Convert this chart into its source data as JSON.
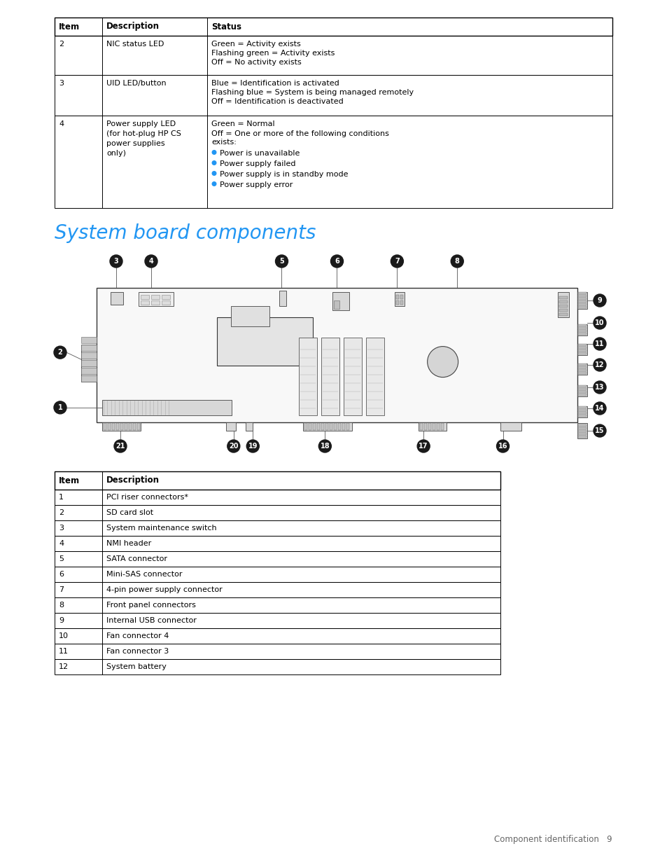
{
  "bg_color": "#ffffff",
  "title": "System board components",
  "title_color": "#2196f3",
  "title_fontsize": 20,
  "footer_text": "Component identification   9",
  "footer_fontsize": 8.5,
  "table1_rows": [
    {
      "item": "2",
      "desc": "NIC status LED",
      "status_plain": "Green = Activity exists\nFlashing green = Activity exists\nOff = No activity exists"
    },
    {
      "item": "3",
      "desc": "UID LED/button",
      "status_plain": "Blue = Identification is activated\nFlashing blue = System is being managed remotely\nOff = Identification is deactivated"
    },
    {
      "item": "4",
      "desc": "Power supply LED\n(for hot-plug HP CS\npower supplies\nonly)",
      "status_text1": "Green = Normal",
      "status_text2": "Off = One or more of the following conditions\nexists:",
      "bullets": [
        "Power is unavailable",
        "Power supply failed",
        "Power supply is in standby mode",
        "Power supply error"
      ]
    }
  ],
  "table2_rows": [
    [
      "1",
      "PCI riser connectors*"
    ],
    [
      "2",
      "SD card slot"
    ],
    [
      "3",
      "System maintenance switch"
    ],
    [
      "4",
      "NMI header"
    ],
    [
      "5",
      "SATA connector"
    ],
    [
      "6",
      "Mini-SAS connector"
    ],
    [
      "7",
      "4-pin power supply connector"
    ],
    [
      "8",
      "Front panel connectors"
    ],
    [
      "9",
      "Internal USB connector"
    ],
    [
      "10",
      "Fan connector 4"
    ],
    [
      "11",
      "Fan connector 3"
    ],
    [
      "12",
      "System battery"
    ]
  ],
  "text_fs": 8.0,
  "hdr_fs": 8.5,
  "bullet_color": "#2196f3",
  "bubble_bg": "#1a1a1a",
  "bubble_fg": "#ffffff",
  "bubble_fs": 7.0,
  "diagram_line_color": "#555555",
  "board_fill": "#f8f8f8",
  "comp_fill": "#d8d8d8"
}
